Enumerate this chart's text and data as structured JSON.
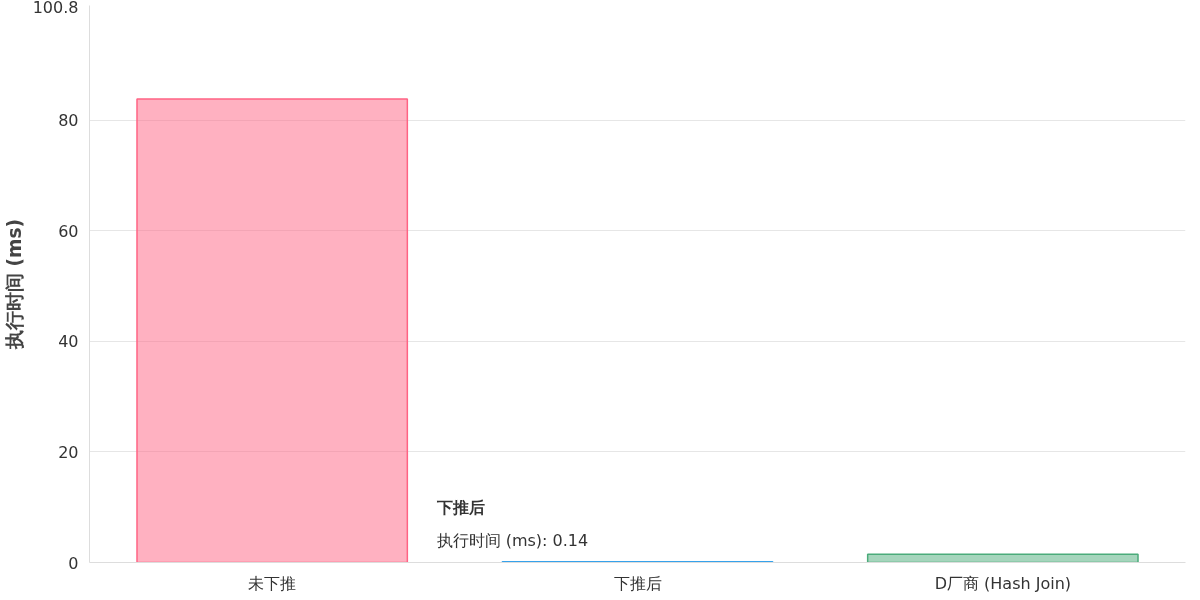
{
  "chart_data": {
    "type": "bar",
    "ylabel": "执行时间 (ms)",
    "categories": [
      "未下推",
      "下推后",
      "D厂商 (Hash Join)"
    ],
    "values": [
      83.9,
      0.14,
      1.5
    ],
    "colors": [
      "#ff6384",
      "#36a2eb",
      "#4bab7a"
    ],
    "ylim": [
      0,
      100.8
    ],
    "yticks": [
      0,
      20,
      40,
      60,
      80,
      100.8
    ],
    "grid": "y",
    "annotations": [
      "下推后",
      "执行时间 (ms): 0.14"
    ]
  }
}
